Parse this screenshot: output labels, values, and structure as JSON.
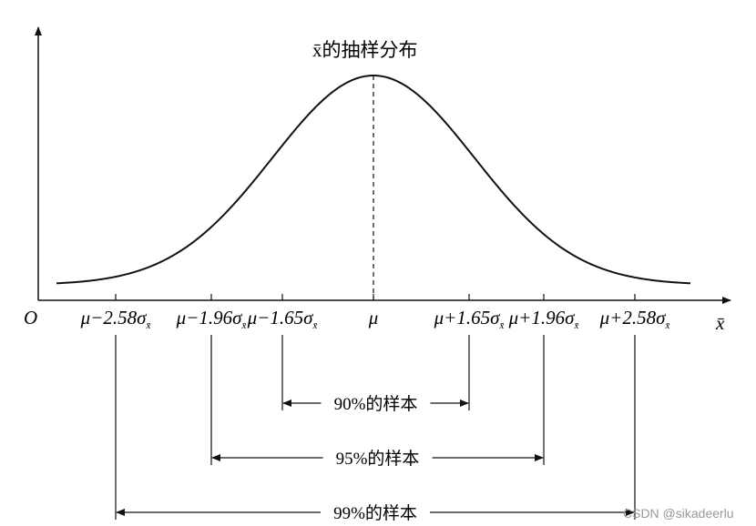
{
  "title": "x̄的抽样分布",
  "axis": {
    "origin": "O",
    "x_label": "x̄"
  },
  "ticks": [
    {
      "text": "μ−2.58σ",
      "sub": "x̄"
    },
    {
      "text": "μ−1.96σ",
      "sub": "x̄"
    },
    {
      "text": "μ−1.65σ",
      "sub": "x̄"
    },
    {
      "text": "μ"
    },
    {
      "text": "μ+1.65σ",
      "sub": "x̄"
    },
    {
      "text": "μ+1.96σ",
      "sub": "x̄"
    },
    {
      "text": "μ+2.58σ",
      "sub": "x̄"
    }
  ],
  "intervals": [
    "90%的样本",
    "95%的样本",
    "99%的样本"
  ],
  "watermark": "CSDN @sikadeerlu"
}
